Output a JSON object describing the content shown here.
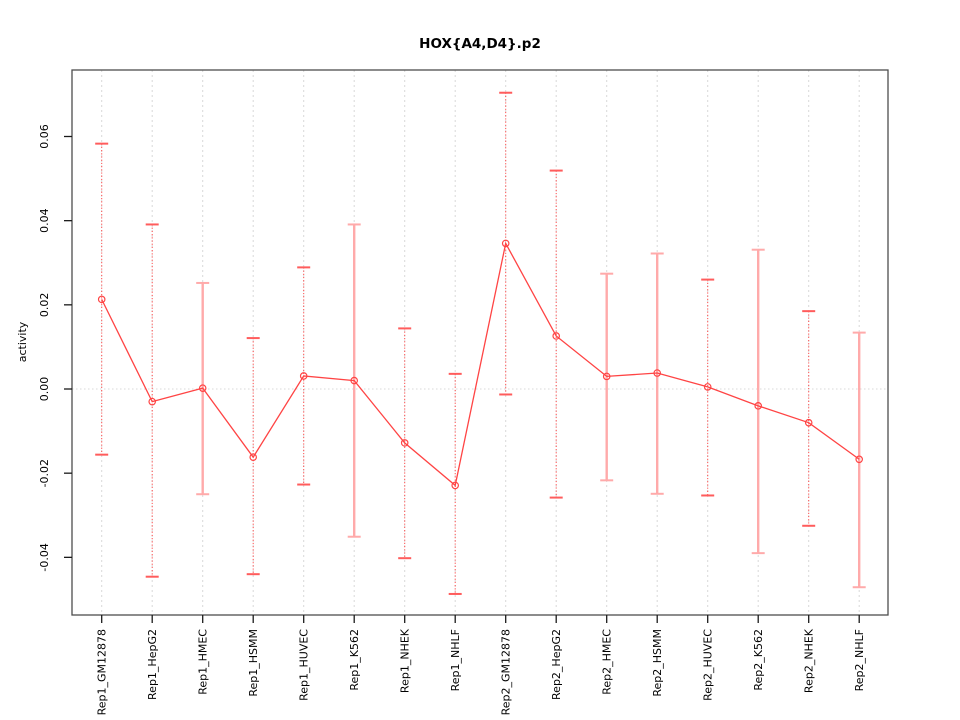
{
  "chart_data": {
    "type": "line",
    "title": "HOX{A4,D4}.p2",
    "xlabel": "",
    "ylabel": "activity",
    "ylim": [
      -0.0537,
      0.0758
    ],
    "yticks": [
      0.06,
      0.04,
      0.02,
      0.0,
      -0.02,
      -0.04
    ],
    "ytick_labels": [
      "0.06",
      "0.04",
      "0.02",
      "0.00",
      "-0.02",
      "-0.04"
    ],
    "grid": "vertical dashed gridlines at each category; dotted horizontal line at 0",
    "legend": "none",
    "categories": [
      "Rep1_GM12878",
      "Rep1_HepG2",
      "Rep1_HMEC",
      "Rep1_HSMM",
      "Rep1_HUVEC",
      "Rep1_K562",
      "Rep1_NHEK",
      "Rep1_NHLF",
      "Rep2_GM12878",
      "Rep2_HepG2",
      "Rep2_HMEC",
      "Rep2_HSMM",
      "Rep2_HUVEC",
      "Rep2_K562",
      "Rep2_NHEK",
      "Rep2_NHLF"
    ],
    "series": [
      {
        "name": "activity",
        "marker": "open-circle",
        "values": [
          0.0213,
          -0.003,
          0.0002,
          -0.0162,
          0.0031,
          0.002,
          -0.0128,
          -0.0229,
          0.0346,
          0.0126,
          0.003,
          0.0038,
          0.0005,
          -0.004,
          -0.008,
          -0.0167
        ],
        "upper": [
          0.0583,
          0.0391,
          0.0252,
          0.0121,
          0.0289,
          0.0391,
          0.0144,
          0.0036,
          0.0704,
          0.0519,
          0.0274,
          0.0322,
          0.026,
          0.0331,
          0.0185,
          0.0134
        ],
        "lower": [
          -0.0156,
          -0.0446,
          -0.025,
          -0.044,
          -0.0227,
          -0.0351,
          -0.0402,
          -0.0487,
          -0.0013,
          -0.0258,
          -0.0217,
          -0.0249,
          -0.0253,
          -0.039,
          -0.0325,
          -0.0471
        ],
        "bar_style": [
          "dark",
          "dark",
          "light",
          "dark",
          "dark",
          "light",
          "dark",
          "dark",
          "dark",
          "dark",
          "light",
          "light",
          "dark",
          "light",
          "dark",
          "light"
        ]
      }
    ],
    "colors": {
      "series_line": "#ff4444",
      "dark_error_bar": "#ff4d4d",
      "dark_cap": "#ff5c5c",
      "light_error_bar": "#ffaaaa",
      "gridline": "#d8d8d8",
      "zero_line": "#d8d8d8",
      "box": "#4d4d4d",
      "tick": "#1a1a1a",
      "text": "#000000",
      "background": "#ffffff"
    }
  }
}
